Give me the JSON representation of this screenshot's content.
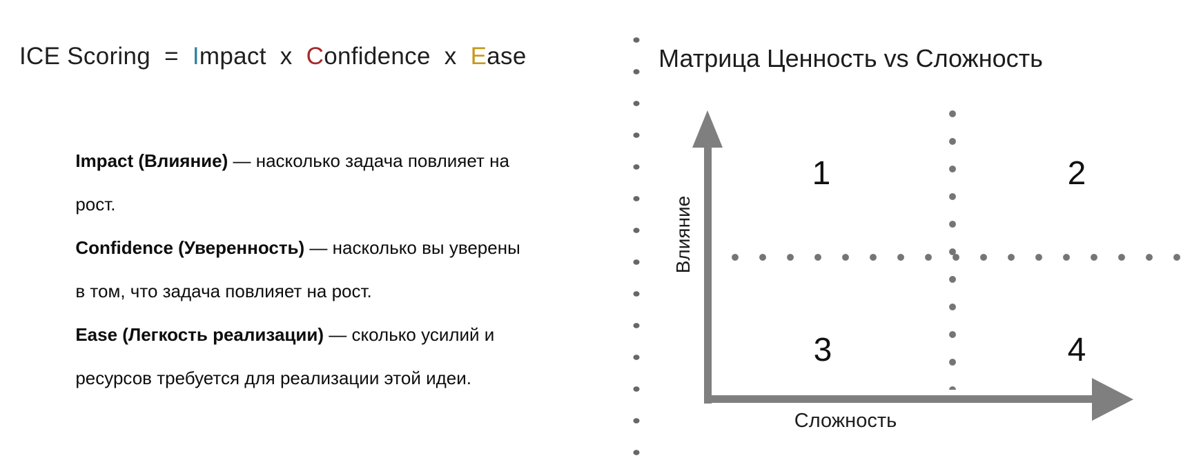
{
  "left_panel": {
    "formula": {
      "plain": "ICE Scoring = Impact x Confidence x Ease",
      "parts": [
        {
          "text": "ICE Scoring  =  ",
          "color": "#1f1f1f"
        },
        {
          "text": "I",
          "color": "#2f7fa3"
        },
        {
          "text": "mpact",
          "color": "#1f1f1f"
        },
        {
          "text": "  x  ",
          "color": "#1f1f1f"
        },
        {
          "text": "C",
          "color": "#a52a2a"
        },
        {
          "text": "onfidence",
          "color": "#1f1f1f"
        },
        {
          "text": "  x  ",
          "color": "#1f1f1f"
        },
        {
          "text": "E",
          "color": "#c49a18"
        },
        {
          "text": "ase",
          "color": "#1f1f1f"
        }
      ]
    },
    "lines": [
      {
        "bold": "Impact (Влияние)",
        "rest": " — насколько задача повлияет на"
      },
      {
        "bold": "",
        "rest": "рост."
      },
      {
        "bold": "Confidence (Уверенность)",
        "rest": " — насколько вы уверены"
      },
      {
        "bold": "",
        "rest": "в том, что задача повлияет на рост."
      },
      {
        "bold": "Ease (Легкость реализации)",
        "rest": " — сколько усилий и"
      },
      {
        "bold": "",
        "rest": "ресурсов требуется для реализации этой идеи."
      }
    ]
  },
  "right_panel": {
    "title": "Матрица Ценность vs Сложность",
    "y_axis_label": "Влияние",
    "x_axis_label": "Сложность",
    "quadrants": [
      {
        "label": "1",
        "position": "top-left"
      },
      {
        "label": "2",
        "position": "top-right"
      },
      {
        "label": "3",
        "position": "bottom-left"
      },
      {
        "label": "4",
        "position": "bottom-right"
      }
    ]
  },
  "colors": {
    "impact_accent": "#2f7fa3",
    "confidence_accent": "#a52a2a",
    "ease_accent": "#c49a18",
    "axis_gray": "#7f7f7f",
    "dot_gray": "#757575",
    "divider_gray": "#676767",
    "text": "#1c1c1c"
  }
}
